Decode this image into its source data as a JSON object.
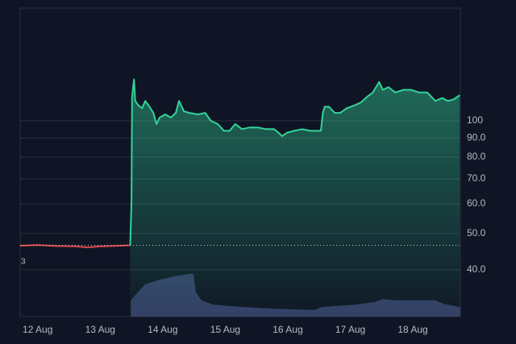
{
  "chart_data": {
    "type": "line",
    "log_scale": true,
    "grid": true,
    "xlim": [
      -0.28,
      6.76
    ],
    "xticks": [
      {
        "value": 0,
        "label": "12 Aug"
      },
      {
        "value": 1,
        "label": "13 Aug"
      },
      {
        "value": 2,
        "label": "14 Aug"
      },
      {
        "value": 3,
        "label": "15 Aug"
      },
      {
        "value": 4,
        "label": "16 Aug"
      },
      {
        "value": 5,
        "label": "17 Aug"
      },
      {
        "value": 6,
        "label": "18 Aug"
      }
    ],
    "ylim": [
      30,
      200
    ],
    "yticks": [
      {
        "value": 40,
        "label": "40.0"
      },
      {
        "value": 50,
        "label": "50.0"
      },
      {
        "value": 60,
        "label": "60.0"
      },
      {
        "value": 70,
        "label": "70.0"
      },
      {
        "value": 80,
        "label": "80.0"
      },
      {
        "value": 90,
        "label": "90.0"
      },
      100
    ],
    "reference_line": 46.5,
    "annotation": "3",
    "series": [
      {
        "color": "#e0474c",
        "fill": false,
        "x": [
          -0.28,
          0,
          0.3,
          0.6,
          0.8,
          1.0,
          1.3,
          1.48
        ],
        "values": [
          46.4,
          46.6,
          46.3,
          46.2,
          45.9,
          46.2,
          46.4,
          46.5
        ]
      },
      {
        "color": "#34d399",
        "fill": true,
        "x": [
          1.48,
          1.5,
          1.51,
          1.54,
          1.56,
          1.61,
          1.67,
          1.72,
          1.79,
          1.85,
          1.9,
          1.95,
          2.04,
          2.13,
          2.21,
          2.26,
          2.34,
          2.43,
          2.56,
          2.68,
          2.77,
          2.88,
          2.98,
          3.07,
          3.16,
          3.27,
          3.39,
          3.52,
          3.65,
          3.78,
          3.85,
          3.91,
          3.99,
          4.1,
          4.23,
          4.36,
          4.53,
          4.56,
          4.59,
          4.66,
          4.75,
          4.84,
          4.94,
          5.07,
          5.17,
          5.27,
          5.36,
          5.46,
          5.52,
          5.61,
          5.72,
          5.85,
          5.97,
          6.1,
          6.23,
          6.36,
          6.47,
          6.56,
          6.65,
          6.75
        ],
        "values": [
          46.5,
          61,
          116,
          129,
          113,
          110,
          108,
          113,
          109,
          105,
          98,
          102,
          104,
          102,
          105,
          113,
          106,
          105,
          104,
          105,
          100,
          98,
          94,
          94,
          98,
          95,
          96,
          96,
          95,
          95,
          93,
          91,
          93,
          94,
          95,
          94,
          94,
          105,
          109,
          109,
          105,
          105,
          108,
          110,
          112,
          116,
          119,
          127,
          121,
          123,
          119,
          121,
          121,
          119,
          119,
          113,
          115,
          113,
          114,
          117
        ]
      }
    ],
    "volume": {
      "color": "#3a4470",
      "y2lim": [
        0,
        700
      ],
      "x": [
        1.49,
        1.6,
        1.72,
        1.91,
        2.17,
        2.43,
        2.49,
        2.53,
        2.62,
        2.81,
        3.26,
        3.78,
        4.42,
        4.55,
        5.07,
        5.39,
        5.52,
        5.72,
        6.36,
        6.49,
        6.76
      ],
      "values": [
        37,
        55,
        73,
        82,
        91,
        97,
        97,
        55,
        37,
        27,
        22,
        18,
        15,
        22,
        27,
        33,
        40,
        37,
        37,
        29,
        22
      ]
    }
  }
}
